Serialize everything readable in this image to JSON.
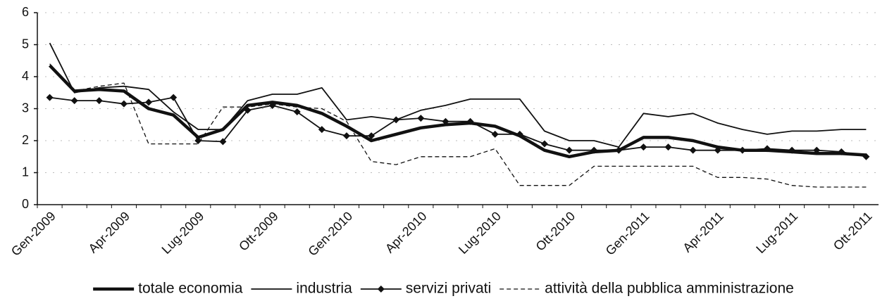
{
  "chart_data": {
    "type": "line",
    "categories": [
      "Gen-2009",
      null,
      null,
      "Apr-2009",
      null,
      null,
      "Lug-2009",
      null,
      null,
      "Ott-2009",
      null,
      null,
      "Gen-2010",
      null,
      null,
      "Apr-2010",
      null,
      null,
      "Lug-2010",
      null,
      null,
      "Ott-2010",
      null,
      null,
      "Gen-2011",
      null,
      null,
      "Apr-2011",
      null,
      null,
      "Lug-2011",
      null,
      null,
      "Ott-2011"
    ],
    "ylim": [
      0,
      6
    ],
    "yticks": [
      0,
      1,
      2,
      3,
      4,
      5,
      6
    ],
    "grid": true,
    "legend": "bottom",
    "series": [
      {
        "name": "totale economia",
        "color": "#111111",
        "line_width": 4.5,
        "dash": "solid",
        "marker": "none",
        "values": [
          4.35,
          3.55,
          3.6,
          3.55,
          3.0,
          2.8,
          2.1,
          2.35,
          3.1,
          3.2,
          3.1,
          2.85,
          2.45,
          2.0,
          2.2,
          2.4,
          2.5,
          2.55,
          2.45,
          2.15,
          1.7,
          1.5,
          1.65,
          1.7,
          2.1,
          2.1,
          2.0,
          1.8,
          1.7,
          1.7,
          1.65,
          1.6,
          1.6,
          1.55
        ]
      },
      {
        "name": "industria",
        "color": "#111111",
        "line_width": 1.8,
        "dash": "solid",
        "marker": "none",
        "values": [
          5.05,
          3.5,
          3.65,
          3.7,
          3.6,
          2.9,
          2.35,
          2.35,
          3.25,
          3.45,
          3.45,
          3.65,
          2.65,
          2.75,
          2.65,
          2.95,
          3.1,
          3.3,
          3.3,
          3.3,
          2.3,
          2.0,
          2.0,
          1.8,
          2.85,
          2.75,
          2.85,
          2.55,
          2.35,
          2.2,
          2.3,
          2.3,
          2.35,
          2.35
        ]
      },
      {
        "name": "servizi privati",
        "color": "#111111",
        "line_width": 1.8,
        "dash": "solid",
        "marker": "diamond",
        "values": [
          3.35,
          3.25,
          3.25,
          3.15,
          3.2,
          3.35,
          2.0,
          1.97,
          2.95,
          3.1,
          2.9,
          2.35,
          2.15,
          2.15,
          2.65,
          2.7,
          2.6,
          2.6,
          2.2,
          2.2,
          1.9,
          1.7,
          1.7,
          1.7,
          1.8,
          1.8,
          1.7,
          1.7,
          1.7,
          1.75,
          1.7,
          1.7,
          1.65,
          1.5
        ]
      },
      {
        "name": "attività della pubblica amministrazione",
        "color": "#111111",
        "line_width": 1.3,
        "dash": "dashed",
        "marker": "none",
        "values": [
          4.4,
          3.55,
          3.7,
          3.8,
          1.9,
          1.9,
          1.9,
          3.05,
          3.05,
          3.15,
          3.05,
          3.0,
          2.6,
          1.35,
          1.25,
          1.5,
          1.5,
          1.5,
          1.75,
          0.6,
          0.6,
          0.6,
          1.2,
          1.2,
          1.2,
          1.2,
          1.2,
          0.85,
          0.85,
          0.8,
          0.6,
          0.55,
          0.55,
          0.55
        ]
      }
    ]
  }
}
